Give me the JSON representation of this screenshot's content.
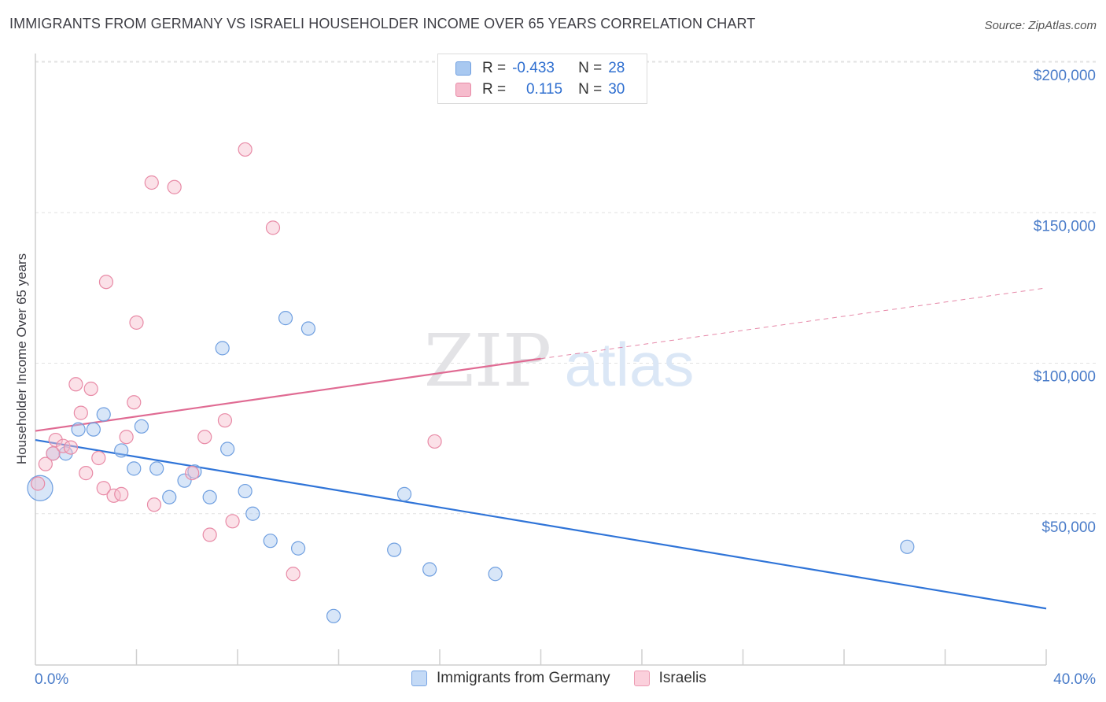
{
  "header": {
    "title": "IMMIGRANTS FROM GERMANY VS ISRAELI HOUSEHOLDER INCOME OVER 65 YEARS CORRELATION CHART",
    "source": "Source: ZipAtlas.com"
  },
  "watermark": {
    "zip": "ZIP",
    "atlas": "atlas"
  },
  "legend": {
    "rows": [
      {
        "r_label": "R =",
        "r_value": "-0.433",
        "n_label": "N =",
        "n_value": "28",
        "color": "#a8c8f0",
        "stroke": "#6f9fe0"
      },
      {
        "r_label": "R =",
        "r_value": "0.115",
        "n_label": "N =",
        "n_value": "30",
        "color": "#f6bccd",
        "stroke": "#e88aa6"
      }
    ]
  },
  "bottom_legend": {
    "items": [
      {
        "label": "Immigrants from Germany",
        "color": "#c4daf6",
        "stroke": "#7aa6e4"
      },
      {
        "label": "Israelis",
        "color": "#fbd0dc",
        "stroke": "#ec9ab2"
      }
    ]
  },
  "chart_data": {
    "type": "scatter",
    "title": "IMMIGRANTS FROM GERMANY VS ISRAELI HOUSEHOLDER INCOME OVER 65 YEARS CORRELATION CHART",
    "xlabel": "",
    "ylabel": "Householder Income Over 65 years",
    "xlim": [
      0,
      40
    ],
    "ylim": [
      5000,
      205000
    ],
    "x_tick_labels": [
      "0.0%",
      "40.0%"
    ],
    "y_ticks": [
      50000,
      100000,
      150000,
      200000
    ],
    "y_tick_labels": [
      "$50,000",
      "$100,000",
      "$150,000",
      "$200,000"
    ],
    "grid": true,
    "legend_position": "top-center",
    "series": [
      {
        "name": "Immigrants from Germany",
        "color": "#6f9fe0",
        "fill": "rgba(168,200,240,0.45)",
        "points": [
          [
            0.0,
            58500,
            "large"
          ],
          [
            0.7,
            70000
          ],
          [
            1.2,
            70000
          ],
          [
            1.7,
            78000
          ],
          [
            2.3,
            78000
          ],
          [
            2.7,
            83000
          ],
          [
            3.4,
            71000
          ],
          [
            3.9,
            65000
          ],
          [
            4.2,
            79000
          ],
          [
            4.8,
            65000
          ],
          [
            5.3,
            55500
          ],
          [
            5.9,
            61000
          ],
          [
            6.3,
            64000
          ],
          [
            6.9,
            55500
          ],
          [
            7.4,
            105000
          ],
          [
            7.6,
            71500
          ],
          [
            8.3,
            57500
          ],
          [
            8.6,
            50000
          ],
          [
            9.3,
            41000
          ],
          [
            9.9,
            115000
          ],
          [
            10.4,
            38500
          ],
          [
            10.8,
            111500
          ],
          [
            11.8,
            16000
          ],
          [
            14.2,
            38000
          ],
          [
            14.6,
            56500
          ],
          [
            15.6,
            31500
          ],
          [
            18.2,
            30000
          ],
          [
            34.5,
            39000
          ]
        ],
        "trend": {
          "x": [
            0,
            40
          ],
          "y": [
            74500,
            18500
          ]
        }
      },
      {
        "name": "Israelis",
        "color": "#e88aa6",
        "fill": "rgba(246,188,205,0.45)",
        "points": [
          [
            0.1,
            60000
          ],
          [
            0.4,
            66500
          ],
          [
            0.7,
            70000
          ],
          [
            0.8,
            74500
          ],
          [
            1.1,
            72500
          ],
          [
            1.4,
            72000
          ],
          [
            1.6,
            93000
          ],
          [
            1.8,
            83500
          ],
          [
            2.0,
            63500
          ],
          [
            2.2,
            91500
          ],
          [
            2.5,
            68500
          ],
          [
            2.7,
            58500
          ],
          [
            2.8,
            127000
          ],
          [
            3.1,
            56000
          ],
          [
            3.4,
            56500
          ],
          [
            3.6,
            75500
          ],
          [
            3.9,
            87000
          ],
          [
            4.0,
            113500
          ],
          [
            4.6,
            160000
          ],
          [
            4.7,
            53000
          ],
          [
            5.5,
            158500
          ],
          [
            6.2,
            63500
          ],
          [
            6.7,
            75500
          ],
          [
            6.9,
            43000
          ],
          [
            7.5,
            81000
          ],
          [
            7.8,
            47500
          ],
          [
            8.3,
            171000
          ],
          [
            9.4,
            145000
          ],
          [
            10.2,
            30000
          ],
          [
            15.8,
            74000
          ]
        ],
        "trend": {
          "x": [
            0,
            20
          ],
          "y": [
            77500,
            101500
          ],
          "dashed_extension": {
            "x": [
              20,
              40
            ],
            "y": [
              101500,
              125000
            ]
          }
        }
      }
    ]
  }
}
